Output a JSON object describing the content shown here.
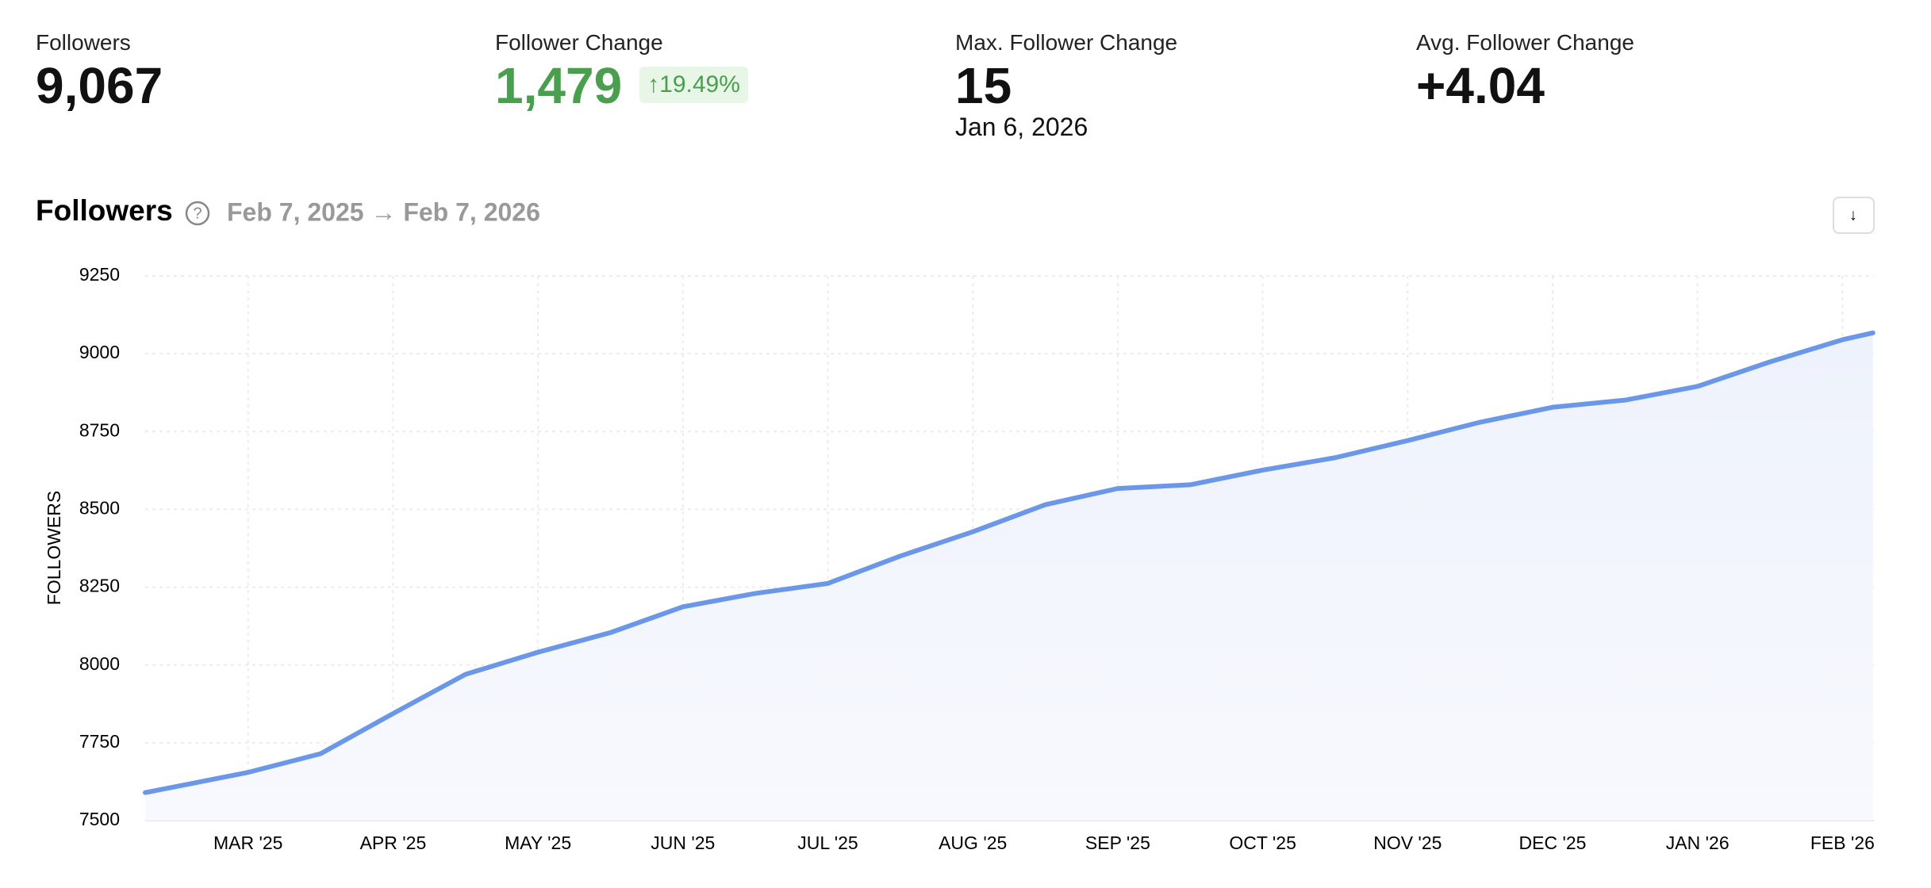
{
  "stats": [
    {
      "label": "Followers",
      "value": "9,067"
    },
    {
      "label": "Follower Change",
      "value": "1,479",
      "badge": "19.49%"
    },
    {
      "label": "Max. Follower Change",
      "value": "15",
      "date": "Jan 6, 2026"
    },
    {
      "label": "Avg. Follower Change",
      "value": "+4.04"
    }
  ],
  "chart_data": {
    "type": "line",
    "title": "Followers",
    "subtitle": "Feb 7, 2025 → Feb 7, 2026",
    "ylabel": "FOLLOWERS",
    "categories": [
      null,
      "MAR '25",
      null,
      "APR '25",
      null,
      "MAY '25",
      null,
      "JUN '25",
      null,
      "JUL '25",
      null,
      "AUG '25",
      null,
      "SEP '25",
      null,
      "OCT '25",
      null,
      "NOV '25",
      null,
      "DEC '25",
      null,
      "JAN '26",
      null,
      "FEB '26",
      null
    ],
    "series": [
      {
        "color": "#6b97e8",
        "values": [
          7590,
          7655,
          7715,
          7844,
          7970,
          8041,
          8104,
          8187,
          8230,
          8262,
          8350,
          8428,
          8515,
          8567,
          8579,
          8626,
          8666,
          8721,
          8780,
          8828,
          8851,
          8895,
          8974,
          9045,
          9067
        ]
      }
    ],
    "ylim": [
      7500,
      9250
    ],
    "yticks": [
      7500,
      7750,
      8000,
      8250,
      8500,
      8750,
      9000,
      9250
    ],
    "grid": true
  }
}
